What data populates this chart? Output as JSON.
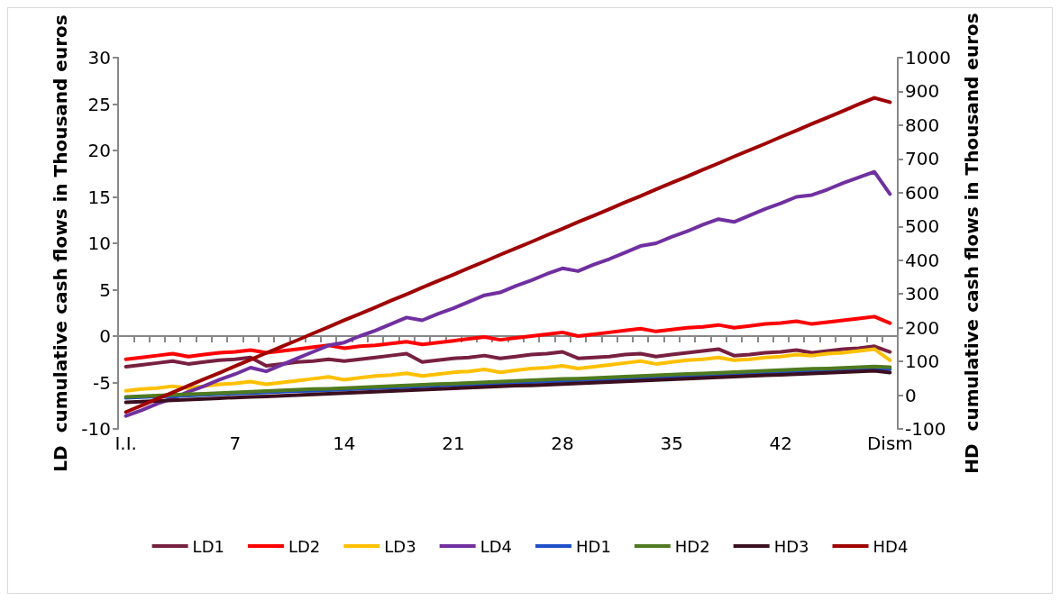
{
  "chart_data": {
    "type": "line",
    "ylabel": "LD  cumulative cash flows in Thousand euros",
    "y2label": "HD  cumulative cash flows in Thousand euros",
    "categories": [
      "I.I.",
      null,
      null,
      null,
      null,
      null,
      null,
      "7",
      null,
      null,
      null,
      null,
      null,
      null,
      "14",
      null,
      null,
      null,
      null,
      null,
      null,
      "21",
      null,
      null,
      null,
      null,
      null,
      null,
      "28",
      null,
      null,
      null,
      null,
      null,
      null,
      "35",
      null,
      null,
      null,
      null,
      null,
      null,
      "42",
      null,
      null,
      null,
      null,
      null,
      null,
      "Dism"
    ],
    "ylim": [
      -10,
      30
    ],
    "yticks": [
      -10,
      -5,
      0,
      5,
      10,
      15,
      20,
      25,
      30
    ],
    "y2lim": [
      -100,
      1000
    ],
    "y2ticks": [
      -100,
      0,
      100,
      200,
      300,
      400,
      500,
      600,
      700,
      800,
      900,
      1000
    ],
    "legend": "bottom",
    "marker": "none",
    "line_style": "solid",
    "series": [
      {
        "name": "LD1",
        "color": "#772040",
        "values": [
          -3.3,
          -3.1,
          -2.9,
          -2.7,
          -3.0,
          -2.8,
          -2.6,
          -2.5,
          -2.3,
          -3.2,
          -3.0,
          -2.8,
          -2.7,
          -2.5,
          -2.7,
          -2.5,
          -2.3,
          -2.1,
          -1.9,
          -2.8,
          -2.6,
          -2.4,
          -2.3,
          -2.1,
          -2.4,
          -2.2,
          -2.0,
          -1.9,
          -1.7,
          -2.4,
          -2.3,
          -2.2,
          -2.0,
          -1.9,
          -2.2,
          -2.0,
          -1.8,
          -1.6,
          -1.4,
          -2.1,
          -2.0,
          -1.8,
          -1.7,
          -1.5,
          -1.8,
          -1.6,
          -1.4,
          -1.3,
          -1.1,
          -1.7
        ]
      },
      {
        "name": "LD2",
        "color": "#ff0000",
        "values": [
          -2.5,
          -2.3,
          -2.1,
          -1.9,
          -2.2,
          -2.0,
          -1.8,
          -1.7,
          -1.5,
          -1.8,
          -1.6,
          -1.4,
          -1.2,
          -1.0,
          -1.3,
          -1.1,
          -1.0,
          -0.8,
          -0.6,
          -0.9,
          -0.7,
          -0.5,
          -0.3,
          -0.1,
          -0.4,
          -0.2,
          0.0,
          0.2,
          0.4,
          0.0,
          0.2,
          0.4,
          0.6,
          0.8,
          0.5,
          0.7,
          0.9,
          1.0,
          1.2,
          0.9,
          1.1,
          1.3,
          1.4,
          1.6,
          1.3,
          1.5,
          1.7,
          1.9,
          2.1,
          1.4
        ]
      },
      {
        "name": "LD3",
        "color": "#ffc000",
        "values": [
          -5.9,
          -5.7,
          -5.6,
          -5.4,
          -5.6,
          -5.4,
          -5.2,
          -5.1,
          -4.9,
          -5.2,
          -5.0,
          -4.8,
          -4.6,
          -4.4,
          -4.7,
          -4.5,
          -4.3,
          -4.2,
          -4.0,
          -4.3,
          -4.1,
          -3.9,
          -3.8,
          -3.6,
          -3.9,
          -3.7,
          -3.5,
          -3.4,
          -3.2,
          -3.5,
          -3.3,
          -3.1,
          -2.9,
          -2.7,
          -3.0,
          -2.8,
          -2.6,
          -2.5,
          -2.3,
          -2.6,
          -2.5,
          -2.3,
          -2.2,
          -2.0,
          -2.1,
          -1.9,
          -1.8,
          -1.6,
          -1.4,
          -2.6
        ]
      },
      {
        "name": "LD4",
        "color": "#7030a0",
        "values": [
          -8.6,
          -8.0,
          -7.3,
          -6.7,
          -6.0,
          -5.4,
          -4.7,
          -4.1,
          -3.4,
          -3.8,
          -3.1,
          -2.4,
          -1.7,
          -1.0,
          -0.7,
          0.0,
          0.6,
          1.3,
          2.0,
          1.7,
          2.4,
          3.0,
          3.7,
          4.4,
          4.7,
          5.4,
          6.0,
          6.7,
          7.3,
          7.0,
          7.7,
          8.3,
          9.0,
          9.7,
          10.0,
          10.7,
          11.3,
          12.0,
          12.6,
          12.3,
          13.0,
          13.7,
          14.3,
          15.0,
          15.2,
          15.8,
          16.5,
          17.1,
          17.7,
          15.3
        ]
      },
      {
        "name": "HD1",
        "color": "#1f4fc8",
        "axis": "y2",
        "values": [
          -8,
          -6,
          -4,
          -3,
          -1,
          1,
          3,
          5,
          6,
          8,
          10,
          12,
          13,
          15,
          17,
          19,
          21,
          22,
          24,
          26,
          28,
          30,
          31,
          33,
          35,
          37,
          39,
          40,
          42,
          44,
          46,
          47,
          49,
          51,
          53,
          55,
          56,
          58,
          60,
          62,
          64,
          65,
          67,
          69,
          71,
          73,
          74,
          76,
          78,
          77
        ]
      },
      {
        "name": "HD2",
        "color": "#4f7a1f",
        "axis": "y2",
        "values": [
          -5,
          -3,
          -1,
          1,
          3,
          4,
          6,
          8,
          10,
          12,
          14,
          16,
          18,
          19,
          21,
          23,
          25,
          27,
          29,
          31,
          33,
          34,
          36,
          38,
          40,
          42,
          44,
          46,
          48,
          49,
          51,
          53,
          55,
          57,
          59,
          61,
          63,
          64,
          66,
          68,
          70,
          72,
          74,
          76,
          78,
          79,
          81,
          83,
          85,
          83
        ]
      },
      {
        "name": "HD3",
        "color": "#3b0f1f",
        "axis": "y2",
        "values": [
          -21,
          -19,
          -17,
          -15,
          -13,
          -11,
          -9,
          -7,
          -5,
          -4,
          -2,
          0,
          2,
          4,
          6,
          8,
          10,
          12,
          14,
          16,
          18,
          20,
          22,
          24,
          26,
          28,
          29,
          31,
          33,
          35,
          37,
          39,
          41,
          43,
          45,
          47,
          49,
          51,
          53,
          55,
          57,
          59,
          60,
          62,
          64,
          66,
          68,
          70,
          72,
          67
        ]
      },
      {
        "name": "HD4",
        "color": "#a00000",
        "axis": "y2",
        "values": [
          -50,
          -31,
          -11,
          8,
          28,
          47,
          66,
          86,
          105,
          125,
          144,
          163,
          183,
          202,
          222,
          241,
          260,
          280,
          299,
          319,
          338,
          357,
          377,
          396,
          416,
          435,
          454,
          474,
          493,
          513,
          532,
          551,
          571,
          590,
          610,
          629,
          648,
          668,
          687,
          707,
          726,
          745,
          765,
          784,
          804,
          823,
          842,
          862,
          881,
          868
        ]
      }
    ]
  }
}
